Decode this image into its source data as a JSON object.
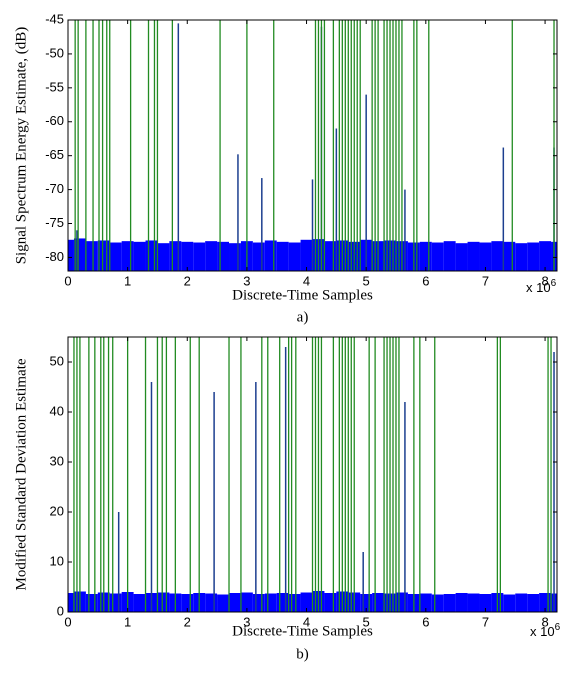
{
  "chart_data": [
    {
      "type": "line",
      "ylabel": "Signal Spectrum Energy Estimate, (dB)",
      "xlabel": "Discrete-Time Samples",
      "x_multiplier": {
        "base": "x 10",
        "exponent": "6"
      },
      "caption": "a)",
      "xlim": [
        0,
        8.2
      ],
      "xticks": [
        0,
        1,
        2,
        3,
        4,
        5,
        6,
        7,
        8
      ],
      "ylim": [
        -82,
        -45
      ],
      "yticks": [
        -80,
        -75,
        -70,
        -65,
        -60,
        -55,
        -50,
        -45
      ],
      "series": [
        {
          "kind": "floor",
          "color": "#0000ff",
          "x": [
            0,
            0.2,
            0.4,
            0.6,
            0.8,
            1,
            1.2,
            1.4,
            1.6,
            1.8,
            2,
            2.2,
            2.4,
            2.6,
            2.8,
            3,
            3.2,
            3.4,
            3.6,
            3.8,
            4,
            4.2,
            4.4,
            4.6,
            4.8,
            5,
            5.2,
            5.4,
            5.6,
            5.8,
            6,
            6.2,
            6.4,
            6.6,
            6.8,
            7,
            7.2,
            7.4,
            7.6,
            7.8,
            8,
            8.2
          ],
          "values": [
            -77.4,
            -77.2,
            -77.6,
            -77.5,
            -77.8,
            -77.6,
            -77.7,
            -77.5,
            -77.9,
            -77.6,
            -77.7,
            -77.8,
            -77.6,
            -77.7,
            -77.9,
            -77.6,
            -77.8,
            -77.5,
            -77.7,
            -77.8,
            -77.4,
            -77.3,
            -77.6,
            -77.5,
            -77.7,
            -77.4,
            -77.6,
            -77.5,
            -77.6,
            -77.8,
            -77.7,
            -77.8,
            -77.6,
            -77.9,
            -77.7,
            -77.8,
            -77.6,
            -77.7,
            -77.9,
            -77.8,
            -77.6,
            -77.7
          ]
        },
        {
          "kind": "stem",
          "color": "#1c3f8f",
          "x": [
            0.15,
            1.85,
            2.85,
            3.25,
            4.1,
            4.25,
            4.5,
            5.0,
            5.65,
            7.3,
            8.15
          ],
          "values": [
            -76,
            -45.5,
            -64.8,
            -68.3,
            -68.5,
            -46,
            -61,
            -56,
            -70,
            -63.8,
            -63.8
          ]
        },
        {
          "kind": "vline",
          "color": "#228b22",
          "x": [
            0.12,
            0.17,
            0.3,
            0.42,
            0.52,
            0.58,
            0.65,
            0.7,
            1.05,
            1.35,
            1.45,
            1.5,
            1.75,
            2.55,
            3.0,
            3.45,
            4.15,
            4.2,
            4.25,
            4.3,
            4.45,
            4.55,
            4.6,
            4.65,
            4.7,
            4.75,
            4.8,
            4.85,
            4.9,
            5.1,
            5.15,
            5.2,
            5.3,
            5.35,
            5.4,
            5.45,
            5.5,
            5.55,
            5.6,
            5.8,
            5.85,
            6.05,
            7.45,
            8.15
          ]
        }
      ]
    },
    {
      "type": "line",
      "ylabel": "Modified Standard Deviation Estimate",
      "xlabel": "Discrete-Time Samples",
      "x_multiplier": {
        "base": "x 10",
        "exponent": "6"
      },
      "caption": "b)",
      "xlim": [
        0,
        8.2
      ],
      "xticks": [
        0,
        1,
        2,
        3,
        4,
        5,
        6,
        7,
        8
      ],
      "ylim": [
        0,
        55
      ],
      "yticks": [
        0,
        10,
        20,
        30,
        40,
        50
      ],
      "series": [
        {
          "kind": "floor",
          "color": "#0000ff",
          "x": [
            0,
            0.2,
            0.4,
            0.6,
            0.8,
            1,
            1.2,
            1.4,
            1.6,
            1.8,
            2,
            2.2,
            2.4,
            2.6,
            2.8,
            3,
            3.2,
            3.4,
            3.6,
            3.8,
            4,
            4.2,
            4.4,
            4.6,
            4.8,
            5,
            5.2,
            5.4,
            5.6,
            5.8,
            6,
            6.2,
            6.4,
            6.6,
            6.8,
            7,
            7.2,
            7.4,
            7.6,
            7.8,
            8,
            8.2
          ],
          "values": [
            3.8,
            4.1,
            3.6,
            3.9,
            3.7,
            4.0,
            3.6,
            3.8,
            3.9,
            3.7,
            3.6,
            3.8,
            3.7,
            3.5,
            3.8,
            3.9,
            3.6,
            3.7,
            3.8,
            3.6,
            3.9,
            4.2,
            3.8,
            4.1,
            3.9,
            3.6,
            3.8,
            3.7,
            3.9,
            3.6,
            3.7,
            3.5,
            3.6,
            3.8,
            3.7,
            3.6,
            3.8,
            3.5,
            3.7,
            3.6,
            3.8,
            3.7
          ]
        },
        {
          "kind": "stem",
          "color": "#1c3f8f",
          "x": [
            0.85,
            1.4,
            2.45,
            3.15,
            3.65,
            4.95,
            5.65,
            8.15
          ],
          "values": [
            20,
            46,
            44,
            46,
            53,
            12,
            42,
            52
          ]
        },
        {
          "kind": "vline",
          "color": "#228b22",
          "x": [
            0.1,
            0.15,
            0.2,
            0.35,
            0.45,
            0.55,
            0.6,
            0.68,
            0.75,
            1.0,
            1.3,
            1.5,
            1.58,
            1.65,
            1.8,
            2.05,
            2.2,
            2.7,
            2.9,
            3.25,
            3.35,
            3.55,
            3.7,
            3.75,
            3.82,
            4.1,
            4.15,
            4.2,
            4.25,
            4.45,
            4.55,
            4.6,
            4.65,
            4.7,
            4.75,
            4.8,
            5.05,
            5.15,
            5.3,
            5.35,
            5.4,
            5.45,
            5.5,
            5.55,
            5.8,
            5.9,
            6.15,
            7.2,
            7.25,
            8.05,
            8.1
          ]
        }
      ]
    }
  ]
}
